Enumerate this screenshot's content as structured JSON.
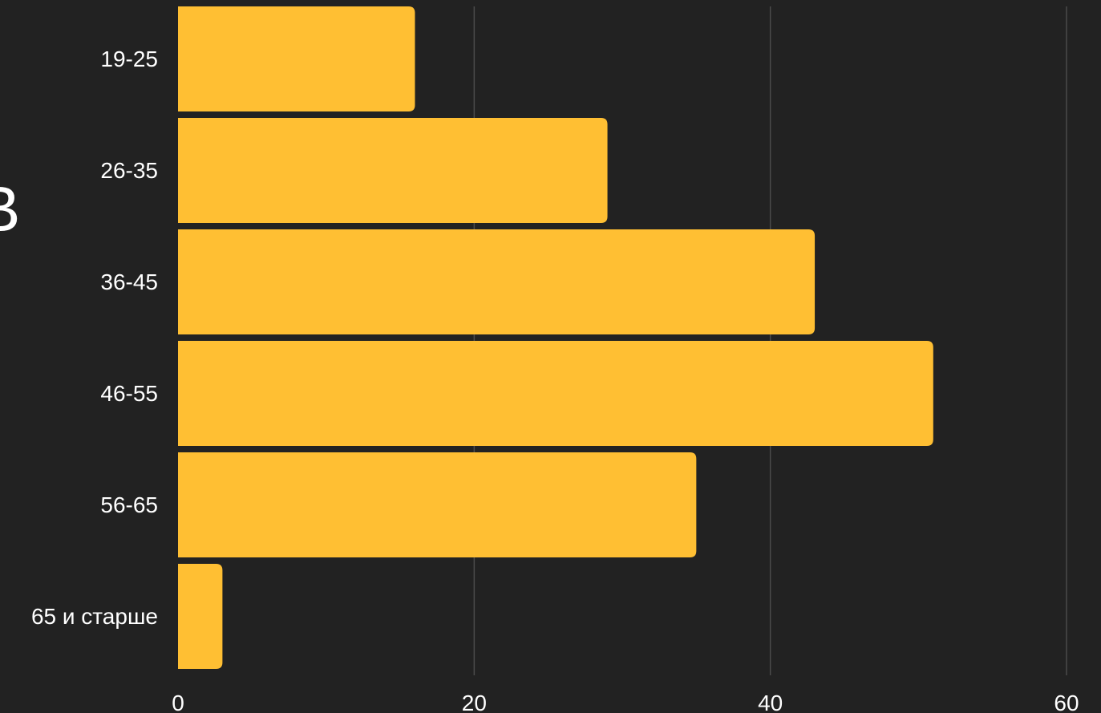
{
  "colors": {
    "background": "#222222",
    "bar": "#FFBF33",
    "grid": "#4a4a4a",
    "text": "#ffffff"
  },
  "chart_data": {
    "type": "bar",
    "orientation": "horizontal",
    "categories": [
      "19-25",
      "26-35",
      "36-45",
      "46-55",
      "56-65",
      "65 и старше"
    ],
    "values": [
      16,
      29,
      43,
      51,
      35,
      3
    ],
    "xlim": [
      0,
      60
    ],
    "x_ticks": [
      0,
      20,
      40,
      60
    ],
    "x_tick_labels": [
      "0",
      "20",
      "40",
      "60"
    ],
    "grid": "vertical",
    "legend": "none",
    "cropped_ylabel_glyph": "В"
  }
}
